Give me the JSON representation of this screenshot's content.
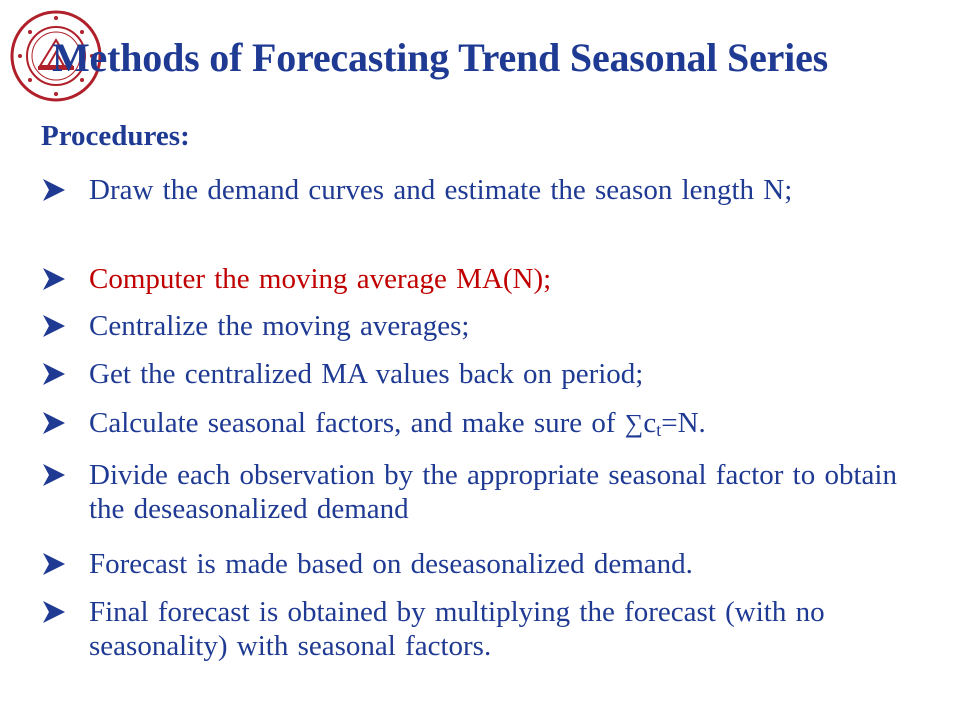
{
  "title": "Methods of Forecasting Trend Seasonal Series",
  "heading": "Procedures:",
  "logo": {
    "name": "university-seal",
    "color": "#b0202a"
  },
  "colors": {
    "primary": "#1f3a93",
    "highlight": "#c00000"
  },
  "bullet_icon": "arrowhead-bullet",
  "items": [
    {
      "text": "Draw the demand curves and estimate the season length N;"
    },
    {
      "text": "Computer the moving average MA(N);"
    },
    {
      "text": "Centralize the moving averages;"
    },
    {
      "text": "Get the centralized MA values back on period;"
    },
    {
      "pre": "Calculate seasonal factors, and make sure of ",
      "sum": "∑",
      "var": "c",
      "sub": "t",
      "post": "=N."
    },
    {
      "text": "Divide each observation by the appropriate seasonal factor to obtain the deseasonalized demand"
    },
    {
      "text": "Forecast is made based on deseasonalized demand."
    },
    {
      "text": "Final forecast is  obtained  by multiplying the forecast (with no seasonality) with seasonal factors."
    }
  ]
}
